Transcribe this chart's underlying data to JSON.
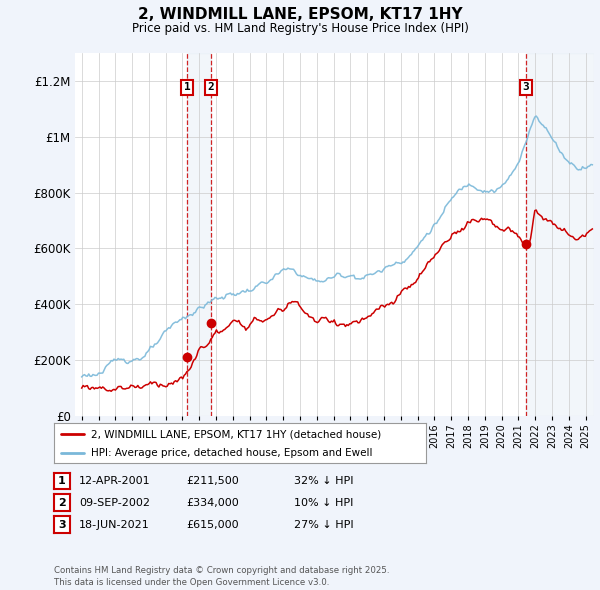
{
  "title": "2, WINDMILL LANE, EPSOM, KT17 1HY",
  "subtitle": "Price paid vs. HM Land Registry's House Price Index (HPI)",
  "transactions": [
    {
      "num": 1,
      "date": "12-APR-2001",
      "year": 2001.28,
      "price": 211500,
      "pct": "32%"
    },
    {
      "num": 2,
      "date": "09-SEP-2002",
      "year": 2002.69,
      "price": 334000,
      "pct": "10%"
    },
    {
      "num": 3,
      "date": "18-JUN-2021",
      "year": 2021.46,
      "price": 615000,
      "pct": "27%"
    }
  ],
  "hpi_line_color": "#7ab8d9",
  "price_line_color": "#cc0000",
  "background_color": "#f0f4fb",
  "plot_bg_color": "#ffffff",
  "shade_color": "#ccdcee",
  "legend_text_red": "2, WINDMILL LANE, EPSOM, KT17 1HY (detached house)",
  "legend_text_blue": "HPI: Average price, detached house, Epsom and Ewell",
  "footer": "Contains HM Land Registry data © Crown copyright and database right 2025.\nThis data is licensed under the Open Government Licence v3.0.",
  "ylim": [
    0,
    1300000
  ],
  "yticks": [
    0,
    200000,
    400000,
    600000,
    800000,
    1000000,
    1200000
  ],
  "ytick_labels": [
    "£0",
    "£200K",
    "£400K",
    "£600K",
    "£800K",
    "£1M",
    "£1.2M"
  ]
}
